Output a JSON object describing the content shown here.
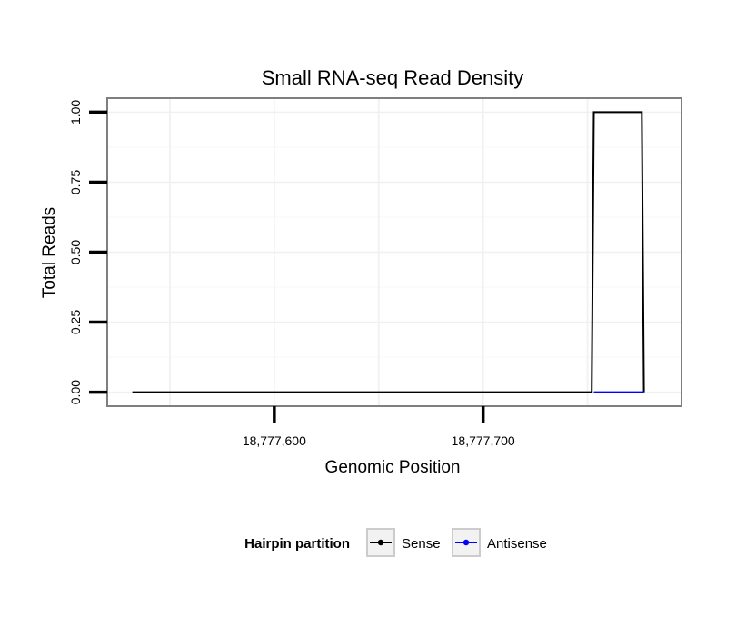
{
  "chart_data": {
    "type": "line",
    "title": "Small RNA-seq Read Density",
    "xlabel": "Genomic Position",
    "ylabel": "Total Reads",
    "xlim": [
      18777520,
      18777795
    ],
    "ylim": [
      -0.05,
      1.05
    ],
    "x_ticks": [
      18777600,
      18777700
    ],
    "x_tick_labels": [
      "18,777,600",
      "18,777,700"
    ],
    "y_ticks": [
      0,
      0.25,
      0.5,
      0.75,
      1.0
    ],
    "y_tick_labels": [
      "0.00",
      "0.25",
      "0.50",
      "0.75",
      "1.00"
    ],
    "grid": true,
    "legend_title": "Hairpin partition",
    "legend_position": "bottom",
    "series": [
      {
        "name": "Sense",
        "color": "#000000",
        "x": [
          18777532,
          18777752,
          18777753,
          18777776,
          18777777
        ],
        "y": [
          0,
          0,
          1,
          1,
          0
        ]
      },
      {
        "name": "Antisense",
        "color": "#0000ff",
        "x": [
          18777753,
          18777777
        ],
        "y": [
          0,
          0
        ]
      }
    ]
  }
}
